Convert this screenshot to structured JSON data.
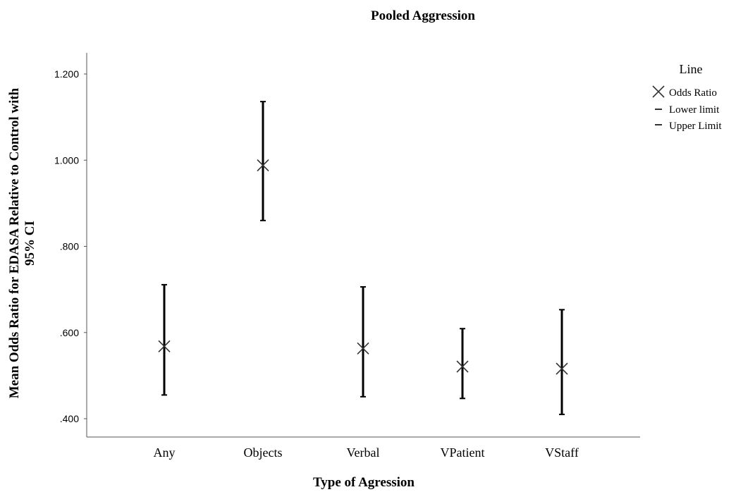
{
  "chart_data": {
    "type": "scatter",
    "title": "Pooled Aggression",
    "xlabel": "Type of Agression",
    "ylabel_lines": [
      "Mean Odds Ratio for EDASA Relative to Control with",
      "95% CI"
    ],
    "categories": [
      "Any",
      "Objects",
      "Verbal",
      "VPatient",
      "VStaff"
    ],
    "yticks": [
      ".400",
      ".600",
      ".800",
      "1.000",
      "1.200"
    ],
    "ytick_values": [
      0.4,
      0.6,
      0.8,
      1.0,
      1.2
    ],
    "ylim": [
      0.36,
      1.25
    ],
    "series": [
      {
        "name": "Odds Ratio",
        "marker": "x",
        "values": [
          0.568,
          0.988,
          0.563,
          0.521,
          0.516
        ]
      },
      {
        "name": "Lower limit",
        "marker": "dash",
        "values": [
          0.455,
          0.86,
          0.451,
          0.447,
          0.41
        ]
      },
      {
        "name": "Upper Limit",
        "marker": "dash",
        "values": [
          0.711,
          1.136,
          0.706,
          0.609,
          0.653
        ]
      }
    ],
    "legend": {
      "title": "Line",
      "position": "right"
    },
    "grid": false
  }
}
